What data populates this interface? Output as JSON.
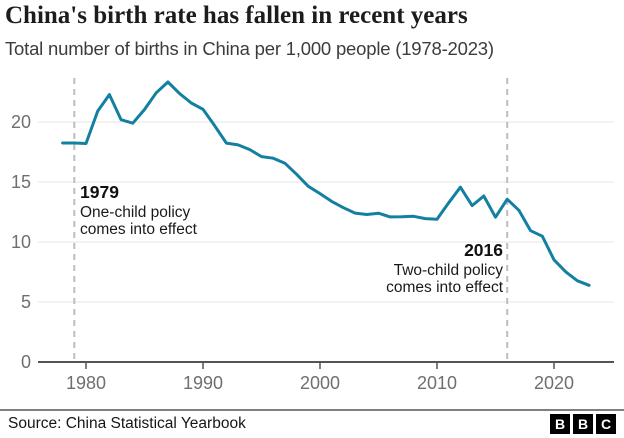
{
  "header": {
    "title": "China's birth rate has fallen in recent years",
    "subtitle": "Total number of births in China per 1,000 people (1978-2023)"
  },
  "chart_data": {
    "type": "line",
    "title": "China's birth rate has fallen in recent years",
    "subtitle": "Total number of births in China per 1,000 people (1978-2023)",
    "x": [
      1978,
      1979,
      1980,
      1981,
      1982,
      1983,
      1984,
      1985,
      1986,
      1987,
      1988,
      1989,
      1990,
      1991,
      1992,
      1993,
      1994,
      1995,
      1996,
      1997,
      1998,
      1999,
      2000,
      2001,
      2002,
      2003,
      2004,
      2005,
      2006,
      2007,
      2008,
      2009,
      2010,
      2011,
      2012,
      2013,
      2014,
      2015,
      2016,
      2017,
      2018,
      2019,
      2020,
      2021,
      2022,
      2023
    ],
    "values": [
      18.25,
      18.25,
      18.21,
      20.91,
      22.28,
      20.19,
      19.9,
      21.04,
      22.43,
      23.33,
      22.37,
      21.58,
      21.06,
      19.68,
      18.24,
      18.09,
      17.7,
      17.12,
      16.98,
      16.57,
      15.64,
      14.64,
      14.03,
      13.38,
      12.86,
      12.41,
      12.29,
      12.4,
      12.09,
      12.1,
      12.14,
      11.95,
      11.9,
      13.27,
      14.57,
      13.03,
      13.83,
      12.07,
      13.57,
      12.64,
      10.94,
      10.48,
      8.52,
      7.52,
      6.77,
      6.39
    ],
    "series_name": "Births per 1,000 people",
    "xlabel": "",
    "ylabel": "",
    "ylim": [
      0,
      23.5
    ],
    "xlim": [
      1978,
      2023
    ],
    "yticks": [
      0,
      5,
      10,
      15,
      20
    ],
    "xticks": [
      1980,
      1990,
      2000,
      2010,
      2020
    ],
    "grid": "horizontal",
    "legend": "none",
    "line_color": "#1380A1",
    "annotations": [
      {
        "year": 1979,
        "label": "1979",
        "lines": [
          "One-child policy",
          "comes into effect"
        ],
        "align": "left"
      },
      {
        "year": 2016,
        "label": "2016",
        "lines": [
          "Two-child policy",
          "comes into effect"
        ],
        "align": "right"
      }
    ]
  },
  "footer": {
    "source": "Source: China Statistical Yearbook",
    "logo_letters": [
      "B",
      "B",
      "C"
    ]
  }
}
